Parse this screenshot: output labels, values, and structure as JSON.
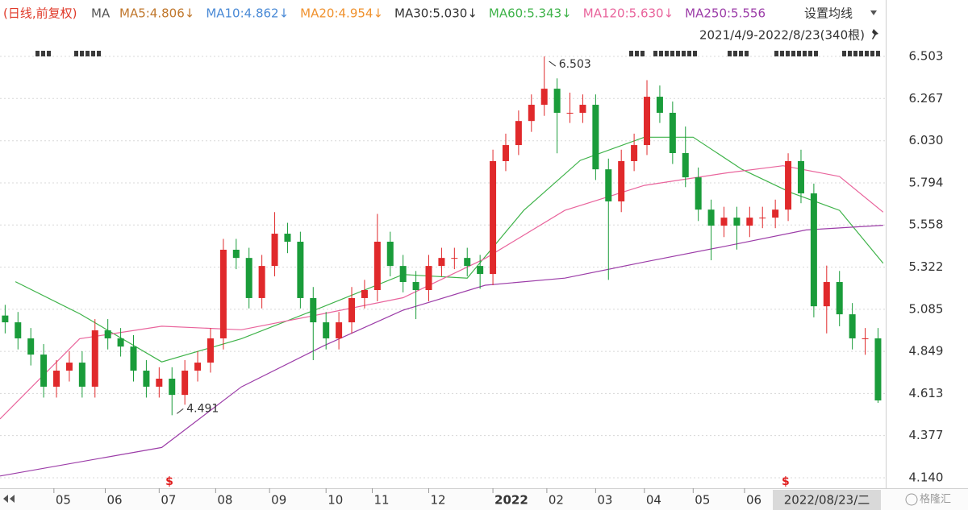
{
  "chart_data": {
    "type": "candlestick",
    "mode_label": "(日线,前复权)",
    "ma_label": "MA",
    "legend": [
      {
        "label": "MA5:4.806↓",
        "color": "#c0772c"
      },
      {
        "label": "MA10:4.862↓",
        "color": "#4a8ad6"
      },
      {
        "label": "MA20:4.954↓",
        "color": "#f0922e"
      },
      {
        "label": "MA30:5.030↓",
        "color": "#333333"
      },
      {
        "label": "MA60:5.343↓",
        "color": "#3fb34a"
      },
      {
        "label": "MA120:5.630↓",
        "color": "#e9649c"
      },
      {
        "label": "MA250:5.556",
        "color": "#9c3da8"
      }
    ],
    "settings_label": "设置均线",
    "range_label": "2021/4/9-2022/8/23(340根)",
    "cursor_label": "2022/08/23/二",
    "watermark": "格隆汇",
    "up_color": "#e0292b",
    "down_color": "#1a9c3a",
    "xlim": [
      0,
      345
    ],
    "ylim": [
      4.086,
      6.571
    ],
    "yticks": [
      6.503,
      6.267,
      {
        "value": 6.03,
        "label": "6.030"
      },
      5.794,
      5.558,
      5.322,
      5.085,
      4.849,
      4.613,
      4.377,
      {
        "value": 4.14,
        "label": "4.140"
      }
    ],
    "xticks": [
      {
        "value": 21,
        "label": "05"
      },
      {
        "value": 41,
        "label": "06"
      },
      {
        "value": 62,
        "label": "07"
      },
      {
        "value": 84,
        "label": "08"
      },
      {
        "value": 105,
        "label": "09"
      },
      {
        "value": 127,
        "label": "10"
      },
      {
        "value": 145,
        "label": "11"
      },
      {
        "value": 167,
        "label": "12"
      },
      {
        "value": 192,
        "label": "2022"
      },
      {
        "value": 213,
        "label": "02"
      },
      {
        "value": 232,
        "label": "03"
      },
      {
        "value": 251,
        "label": "04"
      },
      {
        "value": 270,
        "label": "05"
      },
      {
        "value": 290,
        "label": "06"
      }
    ],
    "grid": true,
    "x": [
      2,
      7,
      12,
      17,
      22,
      27,
      32,
      37,
      42,
      47,
      52,
      57,
      62,
      67,
      72,
      77,
      82,
      87,
      92,
      97,
      102,
      107,
      112,
      117,
      122,
      127,
      132,
      137,
      142,
      147,
      152,
      157,
      162,
      167,
      172,
      177,
      182,
      187,
      192,
      197,
      202,
      207,
      212,
      217,
      222,
      227,
      232,
      237,
      242,
      247,
      252,
      257,
      262,
      267,
      272,
      277,
      282,
      287,
      292,
      297,
      302,
      307,
      312,
      317,
      322,
      327,
      332,
      337,
      342
    ],
    "open": [
      5.05,
      5.012,
      4.922,
      4.831,
      4.651,
      4.741,
      4.786,
      4.651,
      4.967,
      4.922,
      4.876,
      4.741,
      4.651,
      4.696,
      4.605,
      4.741,
      4.786,
      4.922,
      5.419,
      5.373,
      5.148,
      5.328,
      5.509,
      5.464,
      5.148,
      5.012,
      4.922,
      5.012,
      5.148,
      5.193,
      5.464,
      5.328,
      5.238,
      5.193,
      5.328,
      5.373,
      5.373,
      5.328,
      5.283,
      5.916,
      6.006,
      6.141,
      6.232,
      6.322,
      6.187,
      6.187,
      6.232,
      5.87,
      5.69,
      5.916,
      6.006,
      6.277,
      6.187,
      5.961,
      5.825,
      5.644,
      5.554,
      5.599,
      5.554,
      5.599,
      5.599,
      5.644,
      5.916,
      5.735,
      5.102,
      5.238,
      5.057,
      4.922,
      4.922
    ],
    "high": [
      5.11,
      5.07,
      4.98,
      4.89,
      4.8,
      4.85,
      4.85,
      5.03,
      5.03,
      4.98,
      4.94,
      4.8,
      4.76,
      4.76,
      4.8,
      4.85,
      4.98,
      5.48,
      5.48,
      5.43,
      5.39,
      5.63,
      5.57,
      5.52,
      5.21,
      5.07,
      5.07,
      5.21,
      5.25,
      5.62,
      5.52,
      5.39,
      5.3,
      5.39,
      5.43,
      5.43,
      5.43,
      5.39,
      5.98,
      6.07,
      6.2,
      6.29,
      6.503,
      6.38,
      6.3,
      6.29,
      6.29,
      5.93,
      5.98,
      6.07,
      6.37,
      6.34,
      6.25,
      6.11,
      5.88,
      5.7,
      5.66,
      5.66,
      5.66,
      5.66,
      5.7,
      5.96,
      5.98,
      5.79,
      5.33,
      5.3,
      5.12,
      4.98,
      4.98
    ],
    "low": [
      4.95,
      4.86,
      4.77,
      4.59,
      4.59,
      4.68,
      4.59,
      4.59,
      4.86,
      4.82,
      4.68,
      4.59,
      4.59,
      4.491,
      4.55,
      4.68,
      4.73,
      4.86,
      5.31,
      5.09,
      5.09,
      5.27,
      5.4,
      5.09,
      4.8,
      4.86,
      4.86,
      4.95,
      5.09,
      5.13,
      5.27,
      5.18,
      5.03,
      5.13,
      5.27,
      5.31,
      5.27,
      5.2,
      5.22,
      5.86,
      5.95,
      6.08,
      6.17,
      5.96,
      6.13,
      6.13,
      5.81,
      5.25,
      5.63,
      5.86,
      5.95,
      6.13,
      5.9,
      5.77,
      5.58,
      5.36,
      5.49,
      5.42,
      5.49,
      5.54,
      5.54,
      5.58,
      5.68,
      5.04,
      4.95,
      4.99,
      4.86,
      4.83,
      4.56
    ],
    "close": [
      5.012,
      4.922,
      4.831,
      4.651,
      4.741,
      4.786,
      4.651,
      4.967,
      4.922,
      4.876,
      4.741,
      4.651,
      4.696,
      4.605,
      4.741,
      4.786,
      4.922,
      5.419,
      5.373,
      5.148,
      5.328,
      5.509,
      5.464,
      5.148,
      5.012,
      4.922,
      5.012,
      5.148,
      5.193,
      5.464,
      5.328,
      5.238,
      5.193,
      5.328,
      5.373,
      5.373,
      5.328,
      5.283,
      5.916,
      6.006,
      6.141,
      6.232,
      6.322,
      6.187,
      6.187,
      6.232,
      5.87,
      5.69,
      5.916,
      6.006,
      6.277,
      6.187,
      5.961,
      5.825,
      5.644,
      5.554,
      5.599,
      5.554,
      5.599,
      5.599,
      5.644,
      5.916,
      5.735,
      5.102,
      5.238,
      5.057,
      4.922,
      4.922,
      4.574
    ],
    "series": [
      {
        "name": "MA60",
        "color": "#3fb34a",
        "x": [
          6,
          31,
          63,
          94,
          126,
          157,
          182,
          204,
          226,
          251,
          270,
          289,
          308,
          327,
          344
        ],
        "values": [
          5.24,
          5.06,
          4.79,
          4.92,
          5.1,
          5.28,
          5.26,
          5.64,
          5.92,
          6.05,
          6.05,
          5.87,
          5.74,
          5.64,
          5.343
        ]
      },
      {
        "name": "MA120",
        "color": "#e9649c",
        "x": [
          0,
          31,
          63,
          94,
          126,
          157,
          189,
          220,
          251,
          283,
          305,
          327,
          344
        ],
        "values": [
          4.47,
          4.92,
          4.99,
          4.97,
          5.06,
          5.15,
          5.37,
          5.64,
          5.78,
          5.85,
          5.89,
          5.83,
          5.63
        ]
      },
      {
        "name": "MA250",
        "color": "#9c3da8",
        "x": [
          0,
          63,
          94,
          126,
          157,
          189,
          220,
          251,
          283,
          314,
          344
        ],
        "values": [
          4.15,
          4.31,
          4.65,
          4.88,
          5.08,
          5.22,
          5.26,
          5.35,
          5.44,
          5.53,
          5.556
        ]
      }
    ],
    "annotations": [
      {
        "index": 42,
        "field": "high"
      },
      {
        "index": 13,
        "field": "low"
      }
    ],
    "signals": [
      {
        "x": 66,
        "label": "$"
      },
      {
        "x": 306,
        "label": "$"
      }
    ]
  }
}
